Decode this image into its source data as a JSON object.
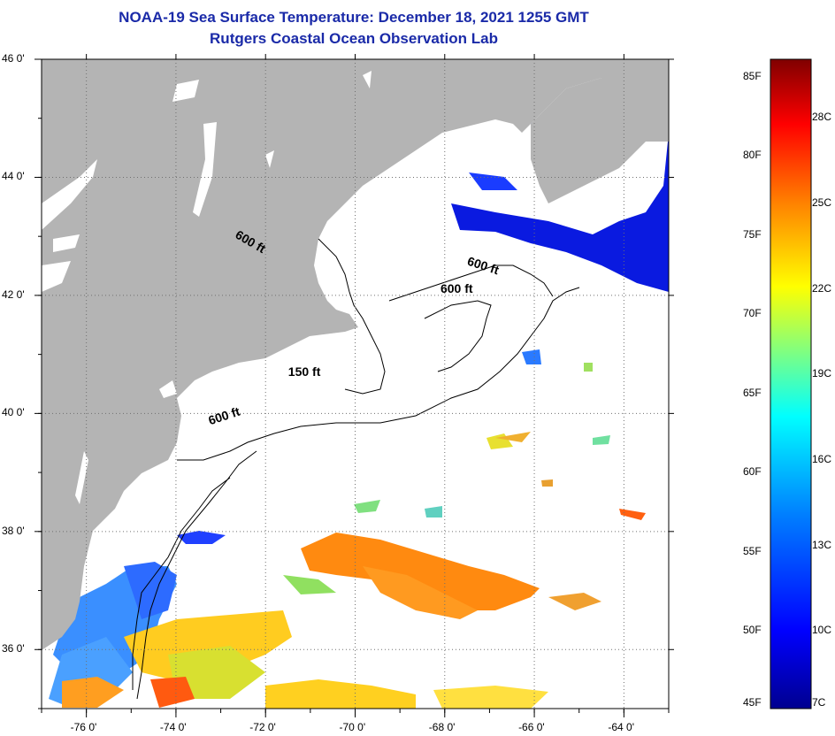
{
  "header": {
    "title": "NOAA-19 Sea Surface Temperature:  December 18, 2021 1255 GMT",
    "subtitle": "Rutgers Coastal Ocean Observation Lab"
  },
  "map": {
    "lat_labels": [
      "46 0'",
      "44 0'",
      "42 0'",
      "40 0'",
      "38 0'",
      "36 0'"
    ],
    "lon_labels": [
      "-76 0'",
      "-74 0'",
      "-72 0'",
      "-70 0'",
      "-68 0'",
      "-66 0'",
      "-64 0'"
    ],
    "lat_values": [
      46,
      44,
      42,
      40,
      38,
      36
    ],
    "lon_values": [
      -76,
      -74,
      -72,
      -70,
      -68,
      -66,
      -64
    ],
    "lat_range": [
      35,
      46
    ],
    "lon_range": [
      -77,
      -63
    ],
    "contours": [
      {
        "label": "600 ft",
        "lon": -72.3,
        "lat": 42.9
      },
      {
        "label": "600 ft",
        "lon": -67.1,
        "lat": 42.5
      },
      {
        "label": "600 ft",
        "lon": -67.7,
        "lat": 42.1
      },
      {
        "label": "150 ft",
        "lon": -71.1,
        "lat": 40.7
      },
      {
        "label": "600 ft",
        "lon": -72.9,
        "lat": 39.95
      }
    ],
    "colors": {
      "land": "#b4b4b4",
      "ocean_nodata": "#ffffff",
      "grid": "#606060"
    }
  },
  "colorbar": {
    "fahrenheit_labels": [
      "85F",
      "80F",
      "75F",
      "70F",
      "65F",
      "60F",
      "55F",
      "50F",
      "45F"
    ],
    "celsius_labels": [
      "28C",
      "25C",
      "22C",
      "19C",
      "16C",
      "13C",
      "10C",
      "7C"
    ],
    "range_f": [
      45,
      86
    ]
  }
}
